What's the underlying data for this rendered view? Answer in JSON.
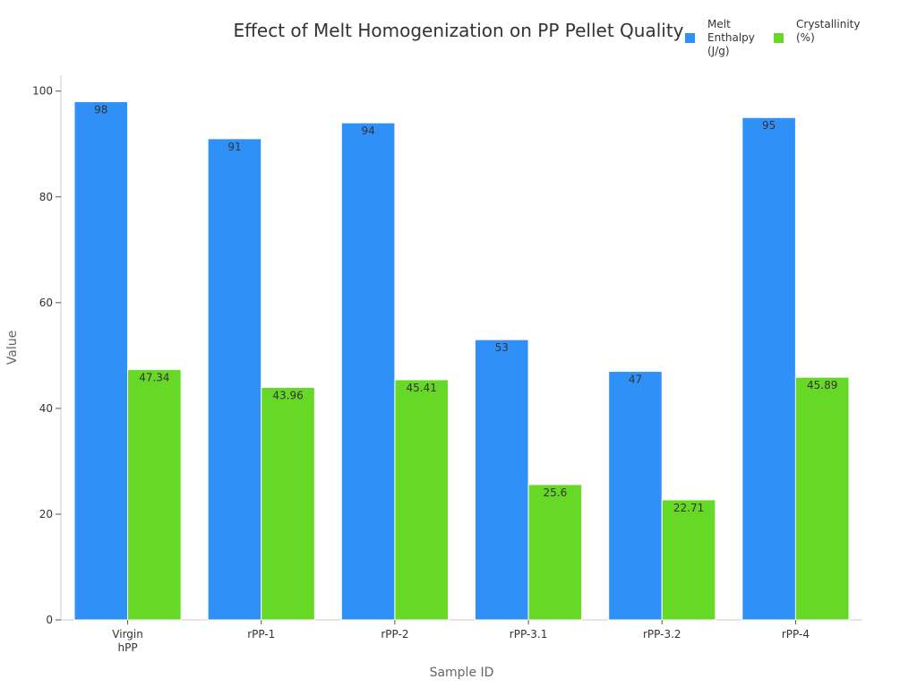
{
  "chart_data": {
    "type": "bar",
    "title": "Effect of Melt Homogenization on PP Pellet Quality",
    "xlabel": "Sample ID",
    "ylabel": "Value",
    "ylim": [
      0,
      103
    ],
    "yticks": [
      0,
      20,
      40,
      60,
      80,
      100
    ],
    "categories": [
      [
        "Virgin",
        "hPP"
      ],
      [
        "rPP-1"
      ],
      [
        "rPP-2"
      ],
      [
        "rPP-3.1"
      ],
      [
        "rPP-3.2"
      ],
      [
        "rPP-4"
      ]
    ],
    "series": [
      {
        "name": "Melt Enthalpy (J/g)",
        "name_lines": [
          "Melt",
          "Enthalpy",
          "(J/g)"
        ],
        "color": "#2f91f8",
        "values": [
          98,
          91,
          94,
          53,
          47,
          95
        ]
      },
      {
        "name": "Crystallinity (%)",
        "name_lines": [
          "Crystallinity",
          "(%)"
        ],
        "color": "#66d926",
        "values": [
          47.34,
          43.96,
          45.41,
          25.6,
          22.71,
          45.89
        ]
      }
    ],
    "grid": false,
    "legend_position": "top-right"
  }
}
